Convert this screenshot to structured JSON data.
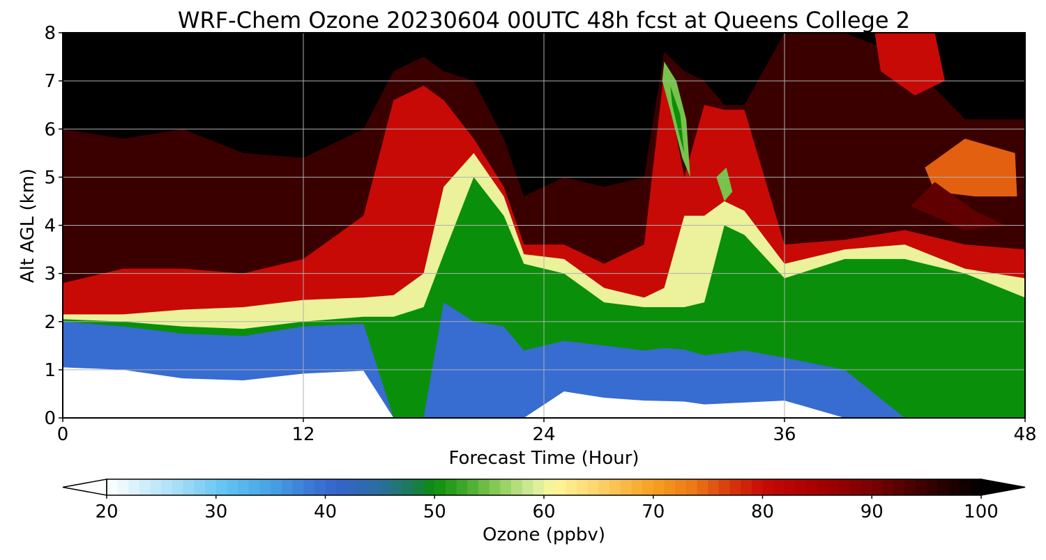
{
  "chart_data": {
    "type": "heatmap",
    "title": "WRF-Chem Ozone  20230604 00UTC 48h fcst at Queens College 2",
    "xlabel": "Forecast Time (Hour)",
    "ylabel": "Alt AGL (km)",
    "xlim": [
      0,
      48
    ],
    "ylim": [
      0,
      8
    ],
    "xticks": [
      0,
      12,
      24,
      36,
      48
    ],
    "yticks": [
      0,
      1,
      2,
      3,
      4,
      5,
      6,
      7,
      8
    ],
    "grid": true,
    "colorbar": {
      "label": "Ozone  (ppbv)",
      "orientation": "horizontal",
      "range": [
        20,
        100
      ],
      "ticks": [
        20,
        30,
        40,
        50,
        60,
        70,
        80,
        90,
        100
      ],
      "extend": "both",
      "stops": [
        {
          "v": 20,
          "c": "#ffffff"
        },
        {
          "v": 23,
          "c": "#d6f0fb"
        },
        {
          "v": 27,
          "c": "#9fdaf6"
        },
        {
          "v": 31,
          "c": "#5ec3f2"
        },
        {
          "v": 35,
          "c": "#46a3e6"
        },
        {
          "v": 38,
          "c": "#3d7fda"
        },
        {
          "v": 41,
          "c": "#3463cc"
        },
        {
          "v": 45,
          "c": "#2b6ea0"
        },
        {
          "v": 48,
          "c": "#1a7b52"
        },
        {
          "v": 50,
          "c": "#0a8f0a"
        },
        {
          "v": 53,
          "c": "#46ab2e"
        },
        {
          "v": 56,
          "c": "#8fcf5a"
        },
        {
          "v": 59,
          "c": "#d6ec9c"
        },
        {
          "v": 61,
          "c": "#fff79a"
        },
        {
          "v": 65,
          "c": "#fdd26a"
        },
        {
          "v": 70,
          "c": "#f6a020"
        },
        {
          "v": 74,
          "c": "#ea7414"
        },
        {
          "v": 77,
          "c": "#d8380c"
        },
        {
          "v": 80,
          "c": "#c80a06"
        },
        {
          "v": 85,
          "c": "#a80000"
        },
        {
          "v": 90,
          "c": "#7a0000"
        },
        {
          "v": 95,
          "c": "#3a0000"
        },
        {
          "v": 100,
          "c": "#000000"
        }
      ]
    },
    "times": [
      0,
      3,
      6,
      9,
      12,
      15,
      16.5,
      18,
      19,
      20.5,
      22,
      23,
      25,
      27,
      29,
      30,
      31,
      32,
      33,
      34,
      36,
      39,
      42,
      45,
      48
    ],
    "layers": [
      {
        "v": 20,
        "h": [
          1.05,
          1.0,
          0.82,
          0.78,
          0.92,
          0.98,
          0.0,
          0.0,
          0.0,
          0.0,
          0.0,
          0.0,
          0.55,
          0.42,
          0.36,
          0.35,
          0.34,
          0.28,
          0.3,
          0.32,
          0.36,
          0.0,
          0.0,
          0.0,
          0.0
        ]
      },
      {
        "v": 40,
        "h": [
          2.0,
          1.9,
          1.75,
          1.7,
          1.9,
          1.95,
          0.0,
          0.0,
          2.4,
          2.0,
          1.9,
          1.4,
          1.6,
          1.5,
          1.4,
          1.45,
          1.42,
          1.3,
          1.35,
          1.4,
          1.25,
          1.0,
          0.0,
          0.0,
          0.0
        ]
      },
      {
        "v": 50,
        "h": [
          2.05,
          2.0,
          1.9,
          1.85,
          2.0,
          2.1,
          2.1,
          2.3,
          3.4,
          5.0,
          4.2,
          3.2,
          3.0,
          2.4,
          2.3,
          2.3,
          2.3,
          2.4,
          4.0,
          3.8,
          2.9,
          3.3,
          3.3,
          3.0,
          2.5
        ]
      },
      {
        "v": 60,
        "h": [
          2.15,
          2.15,
          2.25,
          2.3,
          2.45,
          2.5,
          2.55,
          3.0,
          4.8,
          5.5,
          4.6,
          3.4,
          3.3,
          2.7,
          2.5,
          2.7,
          4.2,
          4.2,
          4.5,
          4.3,
          3.2,
          3.5,
          3.6,
          3.1,
          2.9
        ]
      },
      {
        "v": 80,
        "h": [
          2.8,
          3.1,
          3.1,
          3.0,
          3.3,
          4.2,
          6.6,
          6.9,
          6.6,
          5.8,
          4.8,
          3.6,
          3.6,
          3.2,
          3.6,
          7.2,
          5.0,
          6.5,
          6.4,
          6.4,
          3.6,
          3.7,
          3.9,
          3.6,
          3.5
        ]
      },
      {
        "v": 95,
        "h": [
          6.0,
          5.8,
          6.0,
          5.5,
          5.4,
          6.0,
          7.2,
          7.5,
          7.2,
          7.0,
          5.8,
          4.6,
          5.0,
          4.8,
          5.0,
          7.6,
          7.2,
          7.0,
          6.5,
          6.5,
          8.0,
          8.0,
          7.5,
          6.2,
          6.2
        ]
      }
    ],
    "patches": [
      {
        "v": 55,
        "points": [
          [
            30.0,
            7.4
          ],
          [
            30.6,
            7.0
          ],
          [
            31.1,
            6.2
          ],
          [
            31.3,
            5.0
          ],
          [
            30.9,
            5.4
          ],
          [
            30.3,
            6.4
          ],
          [
            29.9,
            7.0
          ]
        ]
      },
      {
        "v": 50,
        "points": [
          [
            30.3,
            6.9
          ],
          [
            30.8,
            6.3
          ],
          [
            31.0,
            5.5
          ],
          [
            30.8,
            5.8
          ],
          [
            30.4,
            6.5
          ]
        ]
      },
      {
        "v": 55,
        "points": [
          [
            32.6,
            5.0
          ],
          [
            33.0,
            4.5
          ],
          [
            33.4,
            4.7
          ],
          [
            33.1,
            5.2
          ]
        ]
      },
      {
        "v": 75,
        "points": [
          [
            43.0,
            5.2
          ],
          [
            45.0,
            5.8
          ],
          [
            47.5,
            5.5
          ],
          [
            47.6,
            4.6
          ],
          [
            45.5,
            4.6
          ],
          [
            43.5,
            4.7
          ]
        ]
      },
      {
        "v": 92,
        "points": [
          [
            42.3,
            4.4
          ],
          [
            43.5,
            4.9
          ],
          [
            45.5,
            4.3
          ],
          [
            47.0,
            4.0
          ],
          [
            45.0,
            3.9
          ]
        ]
      },
      {
        "v": 80,
        "points": [
          [
            40.5,
            8.0
          ],
          [
            43.5,
            8.0
          ],
          [
            44.0,
            7.0
          ],
          [
            42.5,
            6.7
          ],
          [
            40.8,
            7.2
          ]
        ]
      }
    ]
  }
}
